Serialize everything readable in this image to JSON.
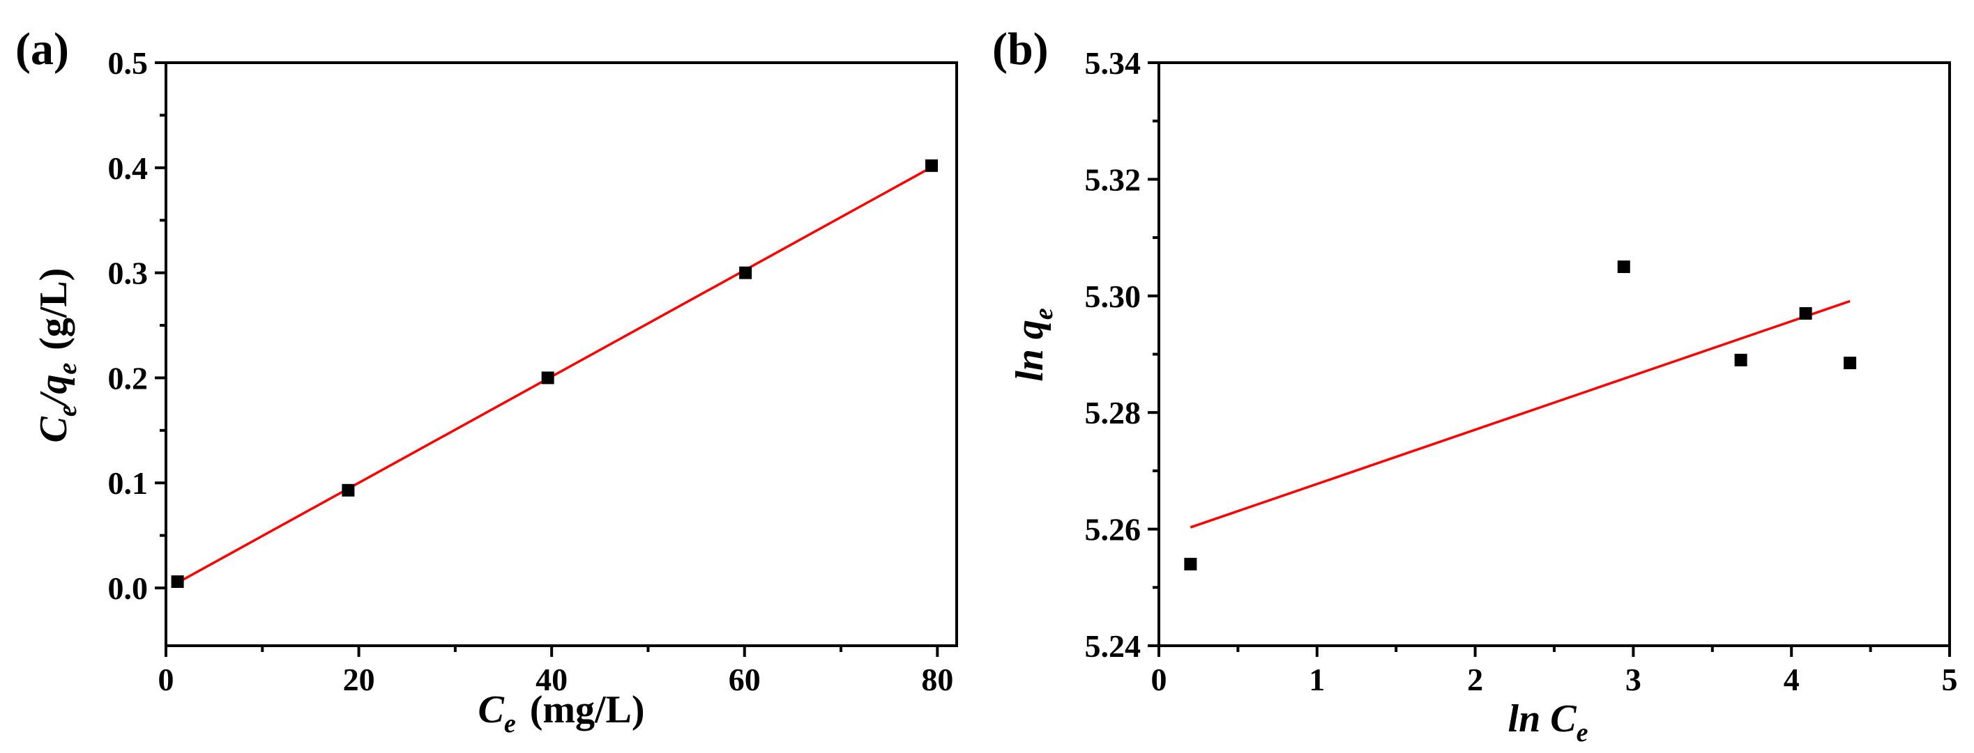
{
  "colors": {
    "fit_line": "#ff0000",
    "marker": "#000000"
  },
  "chart_data": [
    {
      "type": "scatter",
      "panel_label": "(a)",
      "title": "",
      "xlabel": {
        "main": "C",
        "sub": "e",
        "unit": "(mg/L)"
      },
      "ylabel": {
        "main": "C",
        "sub1": "e",
        "mid": "/q",
        "sub2": "e",
        "unit": "(g/L)"
      },
      "xlim": [
        0,
        82
      ],
      "ylim": [
        -0.055,
        0.5
      ],
      "x_ticks": [
        0,
        20,
        40,
        60,
        80
      ],
      "x_tick_labels": [
        "0",
        "20",
        "40",
        "60",
        "80"
      ],
      "y_ticks": [
        0.0,
        0.1,
        0.2,
        0.3,
        0.4,
        0.5
      ],
      "y_tick_labels": [
        "0.0",
        "0.1",
        "0.2",
        "0.3",
        "0.4",
        "0.5"
      ],
      "grid": false,
      "legend": "none",
      "marker": "square",
      "points": {
        "x": [
          1.2,
          18.9,
          39.6,
          60.1,
          79.4
        ],
        "y": [
          0.006,
          0.093,
          0.2,
          0.3,
          0.402
        ]
      },
      "fit_line": {
        "x": [
          1.0,
          79.5
        ],
        "y": [
          0.004,
          0.401
        ]
      }
    },
    {
      "type": "scatter",
      "panel_label": "(b)",
      "title": "",
      "xlabel": {
        "main": "ln C",
        "sub": "e"
      },
      "ylabel": {
        "main": "ln q",
        "sub": "e"
      },
      "xlim": [
        0,
        5
      ],
      "ylim": [
        5.24,
        5.34
      ],
      "x_ticks": [
        0,
        1,
        2,
        3,
        4,
        5
      ],
      "x_tick_labels": [
        "0",
        "1",
        "2",
        "3",
        "4",
        "5"
      ],
      "y_ticks": [
        5.24,
        5.26,
        5.28,
        5.3,
        5.32,
        5.34
      ],
      "y_tick_labels": [
        "5.24",
        "5.26",
        "5.28",
        "5.30",
        "5.32",
        "5.34"
      ],
      "grid": false,
      "legend": "none",
      "marker": "square",
      "points": {
        "x": [
          0.2,
          2.94,
          3.68,
          4.09,
          4.37
        ],
        "y": [
          5.254,
          5.305,
          5.289,
          5.297,
          5.2885
        ]
      },
      "fit_line": {
        "x": [
          0.2,
          4.37
        ],
        "y": [
          5.2603,
          5.2991
        ]
      }
    }
  ]
}
